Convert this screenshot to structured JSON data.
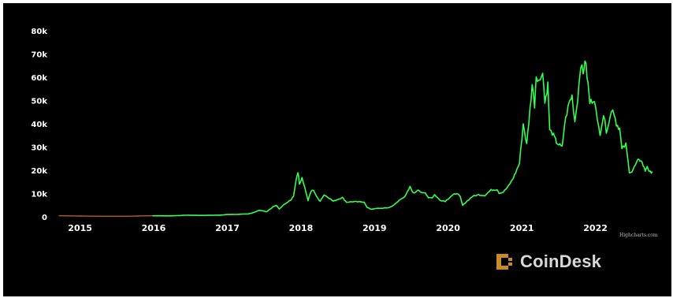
{
  "brand": {
    "logo_text": "CoinDesk",
    "credit": "Highcharts.com"
  },
  "colors": {
    "background": "#000000",
    "line": "#33ff4e",
    "early_line": "#b85a1c",
    "text": "#ffffff",
    "logo_icon": "#c98a2b"
  },
  "chart_data": {
    "type": "line",
    "title": "",
    "xlabel": "",
    "ylabel": "",
    "xlim": [
      "2014-09-15",
      "2022-10-15"
    ],
    "ylim": [
      0,
      80000
    ],
    "grid": false,
    "legend": "none",
    "y_ticks": [
      {
        "value": 0,
        "label": "0"
      },
      {
        "value": 10000,
        "label": "10k"
      },
      {
        "value": 20000,
        "label": "20k"
      },
      {
        "value": 30000,
        "label": "30k"
      },
      {
        "value": 40000,
        "label": "40k"
      },
      {
        "value": 50000,
        "label": "50k"
      },
      {
        "value": 60000,
        "label": "60k"
      },
      {
        "value": 70000,
        "label": "70k"
      },
      {
        "value": 80000,
        "label": "80k"
      }
    ],
    "x_ticks": [
      {
        "value": "2015-01-01",
        "label": "2015"
      },
      {
        "value": "2016-01-01",
        "label": "2016"
      },
      {
        "value": "2017-01-01",
        "label": "2017"
      },
      {
        "value": "2018-01-01",
        "label": "2018"
      },
      {
        "value": "2019-01-01",
        "label": "2019"
      },
      {
        "value": "2020-01-01",
        "label": "2020"
      },
      {
        "value": "2021-01-01",
        "label": "2021"
      },
      {
        "value": "2022-01-01",
        "label": "2022"
      }
    ],
    "series": [
      {
        "points": [
          [
            "2014-09-17",
            460
          ],
          [
            "2014-12-01",
            380
          ],
          [
            "2015-03-01",
            260
          ],
          [
            "2015-06-01",
            230
          ],
          [
            "2015-09-01",
            230
          ],
          [
            "2015-11-05",
            400
          ],
          [
            "2016-01-01",
            430
          ],
          [
            "2016-04-01",
            420
          ],
          [
            "2016-06-15",
            700
          ],
          [
            "2016-09-01",
            600
          ],
          [
            "2016-12-01",
            750
          ],
          [
            "2017-01-05",
            1000
          ],
          [
            "2017-02-15",
            1050
          ],
          [
            "2017-03-15",
            1150
          ],
          [
            "2017-04-15",
            1250
          ],
          [
            "2017-05-10",
            1800
          ],
          [
            "2017-06-10",
            2800
          ],
          [
            "2017-07-15",
            2100
          ],
          [
            "2017-08-15",
            4300
          ],
          [
            "2017-09-01",
            4900
          ],
          [
            "2017-09-15",
            3300
          ],
          [
            "2017-10-15",
            5700
          ],
          [
            "2017-11-10",
            7000
          ],
          [
            "2017-11-25",
            9000
          ],
          [
            "2017-12-08",
            16000
          ],
          [
            "2017-12-17",
            19500
          ],
          [
            "2017-12-24",
            14000
          ],
          [
            "2018-01-06",
            17000
          ],
          [
            "2018-01-20",
            12500
          ],
          [
            "2018-02-05",
            7000
          ],
          [
            "2018-02-20",
            11000
          ],
          [
            "2018-03-05",
            11500
          ],
          [
            "2018-03-20",
            8500
          ],
          [
            "2018-04-06",
            6800
          ],
          [
            "2018-04-25",
            9400
          ],
          [
            "2018-05-15",
            8500
          ],
          [
            "2018-06-10",
            6700
          ],
          [
            "2018-07-25",
            8300
          ],
          [
            "2018-08-15",
            6300
          ],
          [
            "2018-09-15",
            6500
          ],
          [
            "2018-10-15",
            6400
          ],
          [
            "2018-11-10",
            6400
          ],
          [
            "2018-11-25",
            4000
          ],
          [
            "2018-12-15",
            3300
          ],
          [
            "2019-01-15",
            3600
          ],
          [
            "2019-02-15",
            3700
          ],
          [
            "2019-03-15",
            4000
          ],
          [
            "2019-04-10",
            5200
          ],
          [
            "2019-05-15",
            8000
          ],
          [
            "2019-06-01",
            8600
          ],
          [
            "2019-06-26",
            12800
          ],
          [
            "2019-07-15",
            10000
          ],
          [
            "2019-08-05",
            11800
          ],
          [
            "2019-08-25",
            10100
          ],
          [
            "2019-09-10",
            10300
          ],
          [
            "2019-09-25",
            8300
          ],
          [
            "2019-10-15",
            8300
          ],
          [
            "2019-10-26",
            9500
          ],
          [
            "2019-11-20",
            7200
          ],
          [
            "2019-12-18",
            6700
          ],
          [
            "2020-01-15",
            8800
          ],
          [
            "2020-02-12",
            10200
          ],
          [
            "2020-03-01",
            8600
          ],
          [
            "2020-03-13",
            4900
          ],
          [
            "2020-04-01",
            6500
          ],
          [
            "2020-05-01",
            8800
          ],
          [
            "2020-06-01",
            9500
          ],
          [
            "2020-07-01",
            9200
          ],
          [
            "2020-08-01",
            11500
          ],
          [
            "2020-09-01",
            11800
          ],
          [
            "2020-09-10",
            10200
          ],
          [
            "2020-10-01",
            10700
          ],
          [
            "2020-10-25",
            13000
          ],
          [
            "2020-11-15",
            16000
          ],
          [
            "2020-12-01",
            19000
          ],
          [
            "2020-12-20",
            23000
          ],
          [
            "2021-01-08",
            40000
          ],
          [
            "2021-01-25",
            31000
          ],
          [
            "2021-02-10",
            46000
          ],
          [
            "2021-02-21",
            57000
          ],
          [
            "2021-03-05",
            48000
          ],
          [
            "2021-03-13",
            61000
          ],
          [
            "2021-04-01",
            58000
          ],
          [
            "2021-04-14",
            63500
          ],
          [
            "2021-04-25",
            49000
          ],
          [
            "2021-05-10",
            57000
          ],
          [
            "2021-05-19",
            37000
          ],
          [
            "2021-06-01",
            36000
          ],
          [
            "2021-06-22",
            32000
          ],
          [
            "2021-07-20",
            29800
          ],
          [
            "2021-08-01",
            40000
          ],
          [
            "2021-08-23",
            49000
          ],
          [
            "2021-09-07",
            52000
          ],
          [
            "2021-09-21",
            41000
          ],
          [
            "2021-10-05",
            51000
          ],
          [
            "2021-10-20",
            66000
          ],
          [
            "2021-11-01",
            61000
          ],
          [
            "2021-11-10",
            68000
          ],
          [
            "2021-11-25",
            57000
          ],
          [
            "2021-12-04",
            49000
          ],
          [
            "2021-12-27",
            51000
          ],
          [
            "2022-01-10",
            41000
          ],
          [
            "2022-01-24",
            36000
          ],
          [
            "2022-02-10",
            44000
          ],
          [
            "2022-02-24",
            37000
          ],
          [
            "2022-03-28",
            47000
          ],
          [
            "2022-04-15",
            40000
          ],
          [
            "2022-05-01",
            38000
          ],
          [
            "2022-05-12",
            29000
          ],
          [
            "2022-06-01",
            31000
          ],
          [
            "2022-06-18",
            19500
          ],
          [
            "2022-07-01",
            19500
          ],
          [
            "2022-07-30",
            24000
          ],
          [
            "2022-08-15",
            24500
          ],
          [
            "2022-09-05",
            19800
          ],
          [
            "2022-09-15",
            22000
          ],
          [
            "2022-09-25",
            19000
          ],
          [
            "2022-10-10",
            19500
          ]
        ]
      }
    ]
  }
}
